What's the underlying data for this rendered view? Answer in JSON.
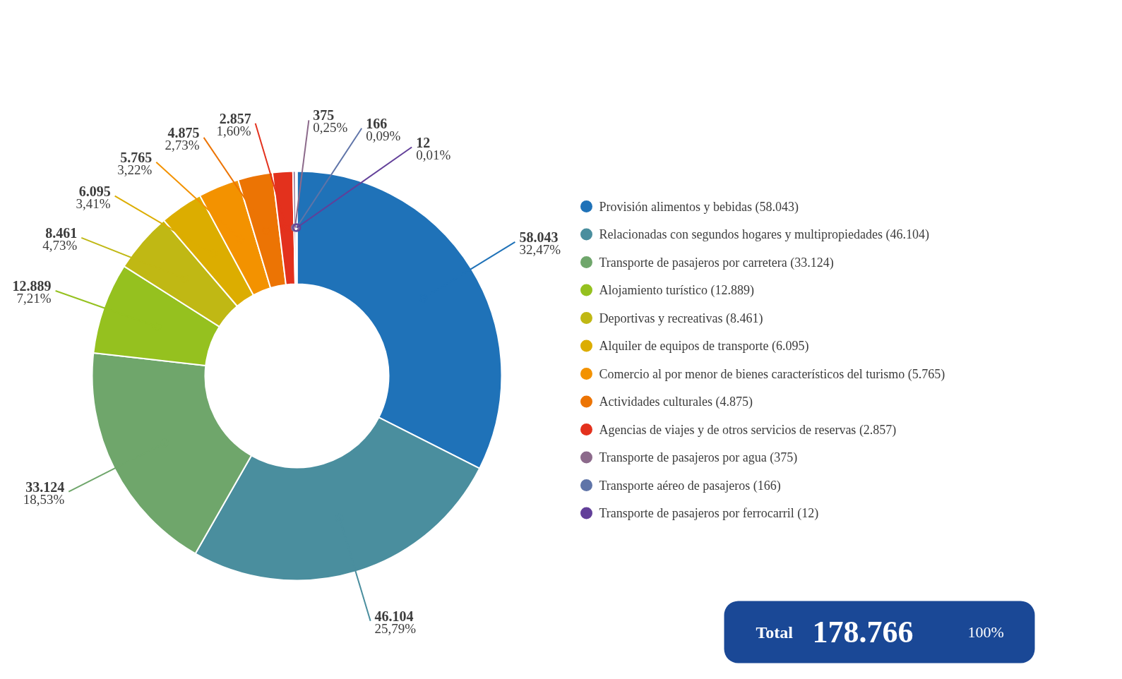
{
  "chart_data": {
    "type": "donut",
    "categories": [
      "Provisión alimentos y bebidas (58.043)",
      "Relacionadas con segundos hogares y multipropiedades (46.104)",
      "Transporte de pasajeros por carretera (33.124)",
      "Alojamiento turístico (12.889)",
      "Deportivas y recreativas (8.461)",
      "Alquiler de equipos de transporte (6.095)",
      "Comercio al por menor de bienes característicos del turismo  (5.765)",
      "Actividades culturales (4.875)",
      "Agencias de viajes y de otros servicios de reservas (2.857)",
      "Transporte de pasajeros por agua (375)",
      "Transporte aéreo de pasajeros (166)",
      "Transporte de pasajeros por ferrocarril (12)"
    ],
    "values": [
      58043,
      46104,
      33124,
      12889,
      8461,
      6095,
      5765,
      4875,
      2857,
      375,
      166,
      12
    ],
    "value_labels": [
      "58.043\n32,47%",
      "46.104\n25,79%",
      "33.124\n18,53%",
      "12.889\n7,21%",
      "8.461\n4,73%",
      "6.095\n3,41%",
      "5.765\n3,22%",
      "4.875\n2,73%",
      "2.857\n1,60%",
      "375\n0,25%",
      "166\n0,09%",
      "12\n0,01%"
    ],
    "colors": [
      "#1f72b8",
      "#4a8e9e",
      "#6fa66b",
      "#95c11f",
      "#c0b814",
      "#dcad00",
      "#f39200",
      "#ec7404",
      "#e3311d",
      "#8c6a8b",
      "#5f74a8",
      "#623f99"
    ],
    "legend": "right",
    "annotations": [
      "Total",
      "178.766",
      "100%"
    ]
  }
}
